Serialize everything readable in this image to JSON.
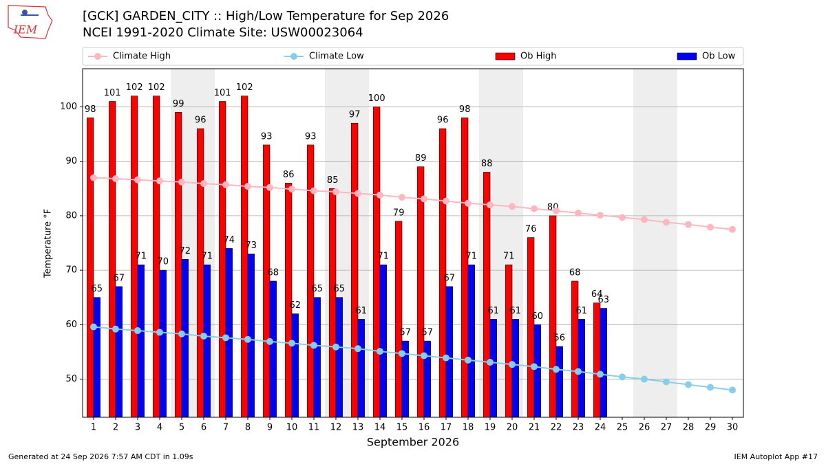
{
  "chart_data": {
    "type": "bar",
    "logo_text": "IEM",
    "title": "[GCK] GARDEN_CITY :: High/Low Temperature for Sep 2026",
    "subtitle": "NCEI 1991-2020 Climate Site: USW00023064",
    "x_label": "September 2026",
    "y_label": "Temperature °F",
    "footer_left": "Generated at 24 Sep 2026 7:57 AM CDT in 1.09s",
    "footer_right": "IEM Autoplot App #17",
    "x": [
      1,
      2,
      3,
      4,
      5,
      6,
      7,
      8,
      9,
      10,
      11,
      12,
      13,
      14,
      15,
      16,
      17,
      18,
      19,
      20,
      21,
      22,
      23,
      24,
      25,
      26,
      27,
      28,
      29,
      30
    ],
    "xlim": [
      0.5,
      30.5
    ],
    "xticks": [
      1,
      2,
      3,
      4,
      5,
      6,
      7,
      8,
      9,
      10,
      11,
      12,
      13,
      14,
      15,
      16,
      17,
      18,
      19,
      20,
      21,
      22,
      23,
      24,
      25,
      26,
      27,
      28,
      29,
      30
    ],
    "ylim": [
      43,
      107
    ],
    "yticks": [
      50,
      60,
      70,
      80,
      90,
      100
    ],
    "grid": true,
    "shaded_ranges": [
      [
        4.5,
        6.5
      ],
      [
        11.5,
        13.5
      ],
      [
        18.5,
        20.5
      ],
      [
        25.5,
        27.5
      ]
    ],
    "series": [
      {
        "name": "Climate High",
        "type": "line",
        "color": "#ffb6c1",
        "values": [
          87.0,
          86.8,
          86.6,
          86.4,
          86.2,
          85.9,
          85.7,
          85.4,
          85.2,
          84.9,
          84.6,
          84.4,
          84.1,
          83.8,
          83.4,
          83.1,
          82.7,
          82.3,
          82.0,
          81.7,
          81.3,
          80.9,
          80.5,
          80.1,
          79.7,
          79.3,
          78.8,
          78.4,
          77.9,
          77.5
        ]
      },
      {
        "name": "Climate Low",
        "type": "line",
        "color": "#87ceeb",
        "values": [
          59.6,
          59.2,
          58.9,
          58.6,
          58.3,
          57.9,
          57.6,
          57.3,
          56.9,
          56.6,
          56.2,
          55.9,
          55.6,
          55.1,
          54.7,
          54.3,
          53.9,
          53.5,
          53.1,
          52.7,
          52.3,
          51.8,
          51.4,
          50.9,
          50.4,
          50.0,
          49.5,
          49.0,
          48.5,
          48.0
        ]
      },
      {
        "name": "Ob High",
        "type": "bar",
        "color": "#ff0000",
        "values": [
          98,
          101,
          102,
          102,
          99,
          96,
          101,
          102,
          93,
          86,
          93,
          85,
          97,
          100,
          79,
          89,
          96,
          98,
          88,
          71,
          76,
          80,
          68,
          64,
          null,
          null,
          null,
          null,
          null,
          null
        ]
      },
      {
        "name": "Ob Low",
        "type": "bar",
        "color": "#0000ff",
        "values": [
          65,
          67,
          71,
          70,
          72,
          71,
          74,
          73,
          68,
          62,
          65,
          65,
          61,
          71,
          57,
          57,
          67,
          71,
          61,
          61,
          60,
          56,
          61,
          63,
          null,
          null,
          null,
          null,
          null,
          null
        ]
      }
    ],
    "legend": "top"
  }
}
